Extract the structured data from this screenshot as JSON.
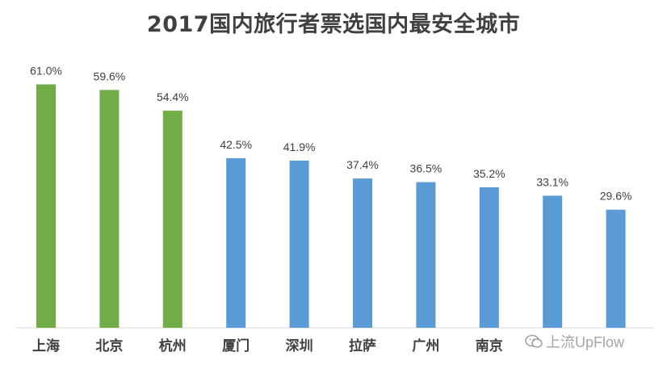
{
  "chart_data": {
    "type": "bar",
    "title": "2017国内旅行者票选国内最安全城市",
    "categories": [
      "上海",
      "北京",
      "杭州",
      "厦门",
      "深圳",
      "拉萨",
      "广州",
      "南京",
      "",
      ""
    ],
    "values": [
      61.0,
      59.6,
      54.4,
      42.5,
      41.9,
      37.4,
      36.5,
      35.2,
      33.1,
      29.6
    ],
    "value_labels": [
      "61.0%",
      "59.6%",
      "54.4%",
      "42.5%",
      "41.9%",
      "37.4%",
      "36.5%",
      "35.2%",
      "33.1%",
      "29.6%"
    ],
    "bar_colors": [
      "#70ad47",
      "#70ad47",
      "#70ad47",
      "#5b9bd5",
      "#5b9bd5",
      "#5b9bd5",
      "#5b9bd5",
      "#5b9bd5",
      "#5b9bd5",
      "#5b9bd5"
    ],
    "xlabel": "",
    "ylabel": "",
    "ylim": [
      0,
      70
    ],
    "grid": false,
    "legend": "none"
  },
  "watermark": {
    "text": "上流UpFlow",
    "icon": "wechat-icon"
  },
  "colors": {
    "text": "#404040",
    "axis": "#d9d9d9"
  }
}
